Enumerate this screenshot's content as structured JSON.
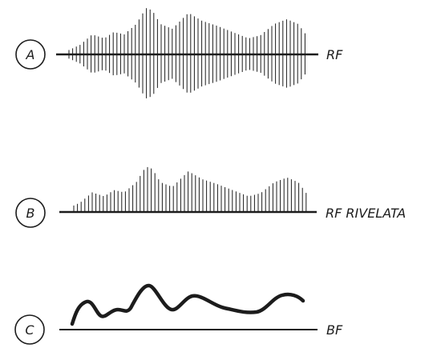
{
  "panels": [
    {
      "id": "a",
      "letter": "A",
      "label": "RF"
    },
    {
      "id": "b",
      "letter": "B",
      "label": "RF RIVELATA"
    },
    {
      "id": "c",
      "letter": "C",
      "label": "BF"
    }
  ],
  "colors": {
    "ink": "#1c1c1c"
  }
}
